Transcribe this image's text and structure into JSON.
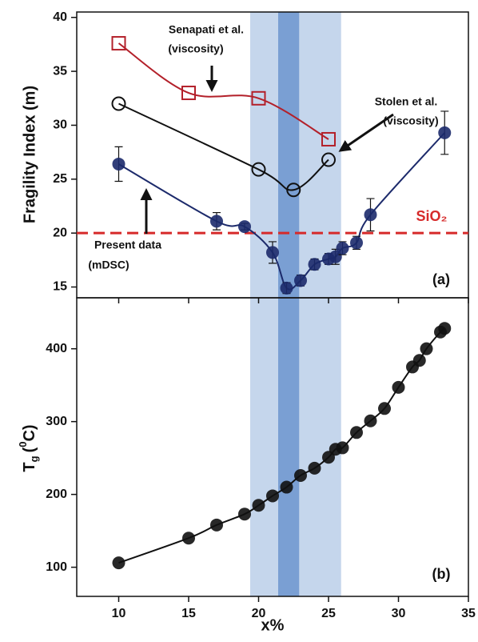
{
  "chart_data": [
    {
      "type": "line",
      "ylabel": "Fragility Index (m)",
      "ylim": [
        14,
        40.5
      ],
      "yticks": [
        15,
        20,
        25,
        30,
        35,
        40
      ],
      "panel_label": "(a)",
      "bands": [
        {
          "xmin": 19.4,
          "xmax": 25.9,
          "color": "#c5d6ec"
        },
        {
          "xmin": 21.4,
          "xmax": 22.9,
          "color": "#7a9fd3"
        }
      ],
      "reference": {
        "name": "SiO₂",
        "value": 20,
        "color": "#d62a2a"
      },
      "annotations": [
        "Senapati et al.",
        "(viscosity)",
        "Stolen et al.",
        "(viscosity)",
        "Present data",
        "(mDSC)"
      ],
      "series": [
        {
          "name": "Senapati et al. (viscosity)",
          "color": "#b3202a",
          "marker": "square",
          "x": [
            10,
            15,
            20,
            25
          ],
          "values": [
            37.6,
            33,
            32.5,
            28.7
          ]
        },
        {
          "name": "Stolen et al. (viscosity)",
          "color": "#111111",
          "marker": "open-circle",
          "x": [
            10,
            20,
            22.5,
            25
          ],
          "values": [
            32,
            25.9,
            24,
            26.8
          ]
        },
        {
          "name": "Present data (mDSC)",
          "color": "#1c2a6b",
          "marker": "filled-circle",
          "x": [
            10,
            17,
            19,
            21,
            22,
            23,
            24,
            25,
            25.5,
            26,
            27,
            28,
            33.3
          ],
          "values": [
            26.4,
            21.1,
            20.6,
            18.2,
            14.9,
            15.6,
            17.1,
            17.6,
            17.8,
            18.6,
            19.1,
            21.7,
            29.3
          ],
          "errors": [
            1.6,
            0.8,
            0.3,
            1.0,
            0.5,
            0.5,
            0.5,
            0.5,
            0.7,
            0.6,
            0.6,
            1.5,
            2.0
          ]
        }
      ]
    },
    {
      "type": "line",
      "ylabel_parts": [
        "T",
        "g",
        "(",
        "0",
        "C)"
      ],
      "xlabel": "x%",
      "xlim": [
        7,
        35
      ],
      "xticks": [
        10,
        15,
        20,
        25,
        30,
        35
      ],
      "ylim": [
        60,
        470
      ],
      "yticks": [
        100,
        200,
        300,
        400
      ],
      "panel_label": "(b)",
      "series": [
        {
          "name": "Tg",
          "color": "#111111",
          "marker": "filled-circle",
          "x": [
            10,
            15,
            17,
            19,
            20,
            21,
            22,
            23,
            24,
            25,
            25.5,
            26,
            27,
            28,
            29,
            30,
            31,
            31.5,
            32,
            33,
            33.3
          ],
          "values": [
            106,
            140,
            158,
            173,
            185,
            198,
            210,
            226,
            236,
            251,
            262,
            264,
            285,
            301,
            318,
            347,
            375,
            384,
            400,
            423,
            428
          ]
        }
      ]
    }
  ]
}
